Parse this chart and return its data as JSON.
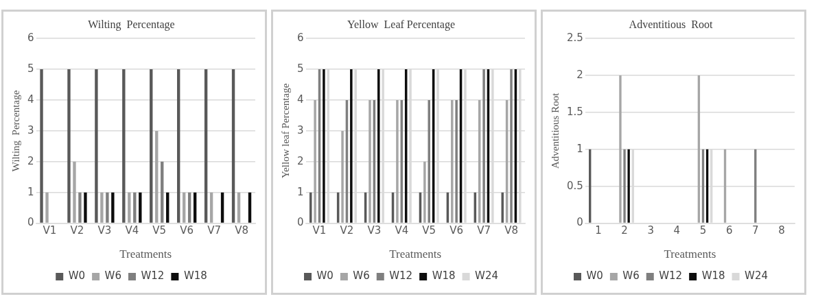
{
  "chart_data": [
    {
      "type": "bar",
      "title": "Wilting  Percentage",
      "xlabel": "Treatments",
      "ylabel": "Wilting  Percentage",
      "categories": [
        "V1",
        "V2",
        "V3",
        "V4",
        "V5",
        "V6",
        "V7",
        "V8"
      ],
      "series": [
        {
          "name": "W0",
          "color": "#595959",
          "values": [
            5,
            5,
            5,
            5,
            5,
            5,
            5,
            5
          ]
        },
        {
          "name": "W6",
          "color": "#a6a6a6",
          "values": [
            1,
            2,
            1,
            1,
            3,
            1,
            1,
            1
          ]
        },
        {
          "name": "W12",
          "color": "#7f7f7f",
          "values": [
            0,
            1,
            1,
            1,
            2,
            1,
            0,
            0
          ]
        },
        {
          "name": "W18",
          "color": "#0d0d0d",
          "values": [
            0,
            1,
            1,
            1,
            1,
            1,
            1,
            1
          ]
        }
      ],
      "ylim": [
        0,
        6
      ],
      "yticks": [
        0,
        1,
        2,
        3,
        4,
        5,
        6
      ],
      "grid": "y",
      "legend": "bottom"
    },
    {
      "type": "bar",
      "title": "Yellow  Leaf Percentage",
      "xlabel": "Treatments",
      "ylabel": "Yellow leaf Percentage",
      "categories": [
        "V1",
        "V2",
        "V3",
        "V4",
        "V5",
        "V6",
        "V7",
        "V8"
      ],
      "series": [
        {
          "name": "W0",
          "color": "#595959",
          "values": [
            1,
            1,
            1,
            1,
            1,
            1,
            1,
            1
          ]
        },
        {
          "name": "W6",
          "color": "#a6a6a6",
          "values": [
            4,
            3,
            4,
            4,
            2,
            4,
            4,
            4
          ]
        },
        {
          "name": "W12",
          "color": "#7f7f7f",
          "values": [
            5,
            4,
            4,
            4,
            4,
            4,
            5,
            5
          ]
        },
        {
          "name": "W18",
          "color": "#0d0d0d",
          "values": [
            5,
            5,
            5,
            5,
            5,
            5,
            5,
            5
          ]
        },
        {
          "name": "W24",
          "color": "#d9d9d9",
          "values": [
            5,
            5,
            5,
            5,
            5,
            5,
            5,
            5
          ]
        }
      ],
      "ylim": [
        0,
        6
      ],
      "yticks": [
        0,
        1,
        2,
        3,
        4,
        5,
        6
      ],
      "grid": "y",
      "legend": "bottom"
    },
    {
      "type": "bar",
      "title": "Adventitious  Root",
      "xlabel": "Treatments",
      "ylabel": "Adventitious Root",
      "categories": [
        "1",
        "2",
        "3",
        "4",
        "5",
        "6",
        "7",
        "8"
      ],
      "series": [
        {
          "name": "W0",
          "color": "#595959",
          "values": [
            1,
            0,
            0,
            0,
            0,
            0,
            0,
            0
          ]
        },
        {
          "name": "W6",
          "color": "#a6a6a6",
          "values": [
            0,
            2,
            0,
            0,
            2,
            1,
            0,
            0
          ]
        },
        {
          "name": "W12",
          "color": "#7f7f7f",
          "values": [
            0,
            1,
            0,
            0,
            1,
            0,
            1,
            0
          ]
        },
        {
          "name": "W18",
          "color": "#0d0d0d",
          "values": [
            0,
            1,
            0,
            0,
            1,
            0,
            0,
            0
          ]
        },
        {
          "name": "W24",
          "color": "#d9d9d9",
          "values": [
            0,
            1,
            0,
            0,
            1,
            0,
            0,
            0
          ]
        }
      ],
      "ylim": [
        0,
        2.5
      ],
      "yticks": [
        0,
        0.5,
        1,
        1.5,
        2,
        2.5
      ],
      "grid": "y",
      "legend": "bottom"
    }
  ]
}
